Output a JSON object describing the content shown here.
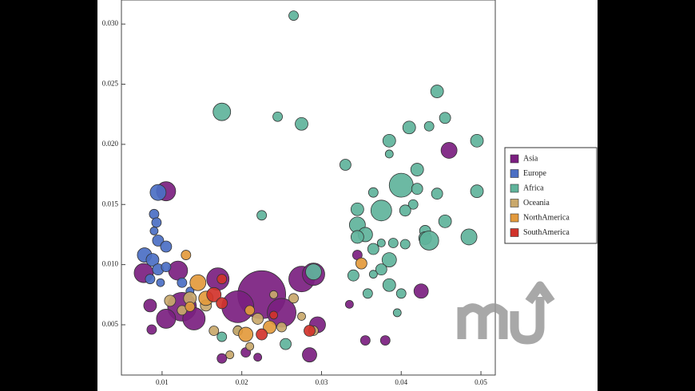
{
  "chart_data": {
    "type": "bubble",
    "xlim": [
      0.0049,
      0.0518
    ],
    "ylim": [
      0.00082,
      0.032
    ],
    "xticks": [
      0.01,
      0.02,
      0.03,
      0.04,
      0.05
    ],
    "yticks": [
      {
        "value": 0.005,
        "label": "0.005"
      },
      {
        "value": 0.01,
        "label": "0.010"
      },
      {
        "value": 0.015,
        "label": "0.015"
      },
      {
        "value": 0.02,
        "label": "0.020"
      },
      {
        "value": 0.025,
        "label": "0.025"
      },
      {
        "value": 0.03,
        "label": "0.030"
      }
    ],
    "series": [
      {
        "name": "Asia",
        "color": "#7b1f80",
        "x": [
          0.0105,
          0.0077,
          0.0085,
          0.0087,
          0.0125,
          0.014,
          0.017,
          0.0225,
          0.0195,
          0.025,
          0.0275,
          0.029,
          0.0295,
          0.0285,
          0.0175,
          0.0205,
          0.022,
          0.0335,
          0.0345,
          0.0355,
          0.038,
          0.0425,
          0.046,
          0.0105,
          0.012
        ],
        "values": [
          0.0161,
          0.0093,
          0.0066,
          0.0046,
          0.0065,
          0.0055,
          0.0088,
          0.0075,
          0.0065,
          0.006,
          0.0088,
          0.0092,
          0.005,
          0.0025,
          0.0022,
          0.0027,
          0.0023,
          0.0067,
          0.0108,
          0.0037,
          0.0037,
          0.0078,
          0.0195,
          0.0055,
          0.0095
        ],
        "sizes": [
          12,
          12,
          8,
          6,
          18,
          14,
          14,
          30,
          20,
          18,
          16,
          14,
          10,
          9,
          6,
          6,
          5,
          5,
          6,
          6,
          6,
          9,
          10,
          12,
          12
        ]
      },
      {
        "name": "Europe",
        "color": "#4b6fc4",
        "x": [
          0.0095,
          0.009,
          0.0093,
          0.009,
          0.0095,
          0.0105,
          0.0078,
          0.0088,
          0.0095,
          0.0105,
          0.0085,
          0.0125,
          0.0135,
          0.0098
        ],
        "values": [
          0.016,
          0.0142,
          0.0135,
          0.0128,
          0.012,
          0.0115,
          0.0108,
          0.0104,
          0.0096,
          0.0098,
          0.0088,
          0.0085,
          0.0078,
          0.0085
        ],
        "sizes": [
          10,
          6,
          6,
          5,
          7,
          7,
          9,
          8,
          7,
          6,
          6,
          6,
          5,
          5
        ]
      },
      {
        "name": "Africa",
        "color": "#5fb39b",
        "x": [
          0.0265,
          0.0175,
          0.0245,
          0.0275,
          0.0445,
          0.0455,
          0.041,
          0.0435,
          0.0385,
          0.0495,
          0.033,
          0.0385,
          0.042,
          0.04,
          0.042,
          0.0445,
          0.0365,
          0.0495,
          0.0345,
          0.0375,
          0.0415,
          0.0405,
          0.0455,
          0.0345,
          0.0355,
          0.0345,
          0.039,
          0.0375,
          0.0405,
          0.043,
          0.043,
          0.0435,
          0.0485,
          0.0365,
          0.0385,
          0.0375,
          0.0365,
          0.034,
          0.029,
          0.0385,
          0.0358,
          0.04,
          0.0395,
          0.0225,
          0.0255,
          0.0175,
          0.0195
        ],
        "values": [
          0.0307,
          0.0227,
          0.0223,
          0.0217,
          0.0244,
          0.0222,
          0.0214,
          0.0215,
          0.0203,
          0.0203,
          0.0183,
          0.0192,
          0.0179,
          0.0166,
          0.0163,
          0.0159,
          0.016,
          0.0161,
          0.0146,
          0.0145,
          0.015,
          0.0145,
          0.0136,
          0.0133,
          0.0125,
          0.0123,
          0.0118,
          0.0118,
          0.0117,
          0.0128,
          0.0122,
          0.012,
          0.0123,
          0.0113,
          0.0104,
          0.0096,
          0.0092,
          0.0091,
          0.0094,
          0.0083,
          0.0076,
          0.0076,
          0.006,
          0.0141,
          0.0034,
          0.004,
          0.0046
        ],
        "sizes": [
          6,
          11,
          6,
          8,
          8,
          7,
          8,
          6,
          8,
          8,
          7,
          5,
          8,
          15,
          7,
          7,
          6,
          8,
          8,
          13,
          6,
          7,
          8,
          10,
          9,
          8,
          6,
          5,
          6,
          7,
          8,
          12,
          10,
          7,
          9,
          7,
          5,
          7,
          10,
          8,
          6,
          6,
          5,
          6,
          7,
          6,
          5
        ]
      },
      {
        "name": "Oceania",
        "color": "#c9a86b",
        "x": [
          0.0135,
          0.0155,
          0.011,
          0.0195,
          0.022,
          0.025,
          0.0265,
          0.029,
          0.021,
          0.0185,
          0.0165,
          0.024,
          0.0275,
          0.0125
        ],
        "values": [
          0.0072,
          0.0066,
          0.007,
          0.0045,
          0.0055,
          0.0048,
          0.0072,
          0.0045,
          0.0032,
          0.0025,
          0.0045,
          0.0075,
          0.0057,
          0.0062
        ],
        "sizes": [
          8,
          7,
          7,
          6,
          7,
          6,
          6,
          6,
          5,
          5,
          6,
          5,
          5,
          6
        ]
      },
      {
        "name": "NorthAmerica",
        "color": "#e39a3c",
        "x": [
          0.013,
          0.035,
          0.0145,
          0.0155,
          0.0205,
          0.0235,
          0.021,
          0.0135
        ],
        "values": [
          0.0108,
          0.0101,
          0.0085,
          0.0072,
          0.0042,
          0.0048,
          0.0062,
          0.0065
        ],
        "sizes": [
          6,
          7,
          10,
          9,
          9,
          8,
          6,
          6
        ]
      },
      {
        "name": "SouthAmerica",
        "color": "#d1332b",
        "x": [
          0.0165,
          0.0175,
          0.0225,
          0.0285,
          0.0175,
          0.024
        ],
        "values": [
          0.0075,
          0.0068,
          0.0042,
          0.0045,
          0.0088,
          0.0058
        ],
        "sizes": [
          9,
          7,
          7,
          7,
          6,
          5
        ]
      }
    ]
  }
}
